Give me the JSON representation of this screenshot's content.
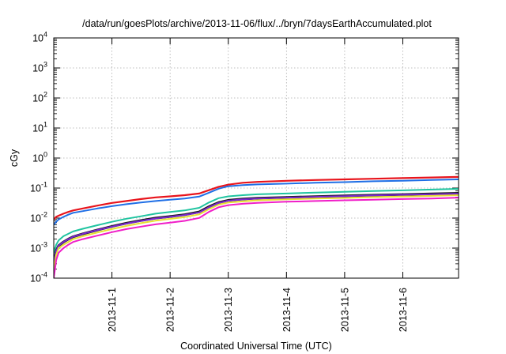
{
  "chart_data": {
    "type": "line",
    "title": "/data/run/goesPlots/archive/2013-11-06/flux/../bryn/7daysEarthAccumulated.plot",
    "xlabel": "Coordinated Universal Time (UTC)",
    "ylabel": "cGy",
    "xlim": [
      "2013-10-31T00:00",
      "2013-11-06T23:00"
    ],
    "ylim": [
      0.0001,
      10000
    ],
    "yscale": "log",
    "grid": true,
    "x_ticks": [
      "2013-11-1",
      "2013-11-2",
      "2013-11-3",
      "2013-11-4",
      "2013-11-5",
      "2013-11-6"
    ],
    "y_ticks": [
      {
        "base": "10",
        "exp": "-4",
        "value": 0.0001
      },
      {
        "base": "10",
        "exp": "-3",
        "value": 0.001
      },
      {
        "base": "10",
        "exp": "-2",
        "value": 0.01
      },
      {
        "base": "10",
        "exp": "-1",
        "value": 0.1
      },
      {
        "base": "10",
        "exp": "0",
        "value": 1
      },
      {
        "base": "10",
        "exp": "1",
        "value": 10
      },
      {
        "base": "10",
        "exp": "2",
        "value": 100
      },
      {
        "base": "10",
        "exp": "3",
        "value": 1000
      },
      {
        "base": "10",
        "exp": "4",
        "value": 10000
      }
    ],
    "x": [
      "2013-10-31T00:00",
      "2013-10-31T01:00",
      "2013-10-31T02:00",
      "2013-10-31T04:00",
      "2013-10-31T06:00",
      "2013-10-31T08:00",
      "2013-10-31T12:00",
      "2013-10-31T18:00",
      "2013-11-01T00:00",
      "2013-11-01T06:00",
      "2013-11-01T12:00",
      "2013-11-01T18:00",
      "2013-11-02T00:00",
      "2013-11-02T06:00",
      "2013-11-02T12:00",
      "2013-11-02T16:00",
      "2013-11-02T20:00",
      "2013-11-03T00:00",
      "2013-11-03T06:00",
      "2013-11-03T12:00",
      "2013-11-04T00:00",
      "2013-11-04T12:00",
      "2013-11-05T00:00",
      "2013-11-05T12:00",
      "2013-11-06T00:00",
      "2013-11-06T12:00",
      "2013-11-06T23:00"
    ],
    "series": [
      {
        "color": "#e8141c",
        "width": 2.2,
        "values": [
          0.009,
          0.011,
          0.012,
          0.014,
          0.016,
          0.018,
          0.021,
          0.026,
          0.032,
          0.037,
          0.043,
          0.049,
          0.053,
          0.058,
          0.066,
          0.085,
          0.11,
          0.13,
          0.15,
          0.16,
          0.175,
          0.185,
          0.195,
          0.205,
          0.215,
          0.225,
          0.235
        ]
      },
      {
        "color": "#1f6fe6",
        "width": 2.0,
        "values": [
          0.006,
          0.0075,
          0.009,
          0.011,
          0.013,
          0.015,
          0.017,
          0.021,
          0.025,
          0.029,
          0.033,
          0.037,
          0.041,
          0.045,
          0.052,
          0.07,
          0.095,
          0.115,
          0.125,
          0.132,
          0.14,
          0.15,
          0.158,
          0.168,
          0.175,
          0.185,
          0.195
        ]
      },
      {
        "color": "#20c4a0",
        "width": 2.0,
        "values": [
          0.0007,
          0.0013,
          0.0018,
          0.0025,
          0.003,
          0.0036,
          0.0044,
          0.0058,
          0.0075,
          0.0095,
          0.0115,
          0.014,
          0.016,
          0.018,
          0.022,
          0.033,
          0.046,
          0.053,
          0.058,
          0.062,
          0.066,
          0.071,
          0.075,
          0.08,
          0.084,
          0.089,
          0.094
        ]
      },
      {
        "color": "#1a1a1a",
        "width": 3.2,
        "values": [
          0.0003,
          0.0008,
          0.0012,
          0.0016,
          0.002,
          0.0024,
          0.003,
          0.004,
          0.0053,
          0.0068,
          0.0083,
          0.01,
          0.0113,
          0.013,
          0.016,
          0.024,
          0.033,
          0.039,
          0.043,
          0.046,
          0.049,
          0.052,
          0.055,
          0.058,
          0.061,
          0.064,
          0.067
        ]
      },
      {
        "color": "#7a28d0",
        "width": 2.0,
        "values": [
          0.0003,
          0.0008,
          0.0012,
          0.0016,
          0.002,
          0.0024,
          0.003,
          0.004,
          0.0052,
          0.0066,
          0.0081,
          0.0097,
          0.011,
          0.0127,
          0.0155,
          0.023,
          0.032,
          0.038,
          0.042,
          0.045,
          0.048,
          0.051,
          0.054,
          0.057,
          0.06,
          0.062,
          0.065
        ]
      },
      {
        "color": "#e8e030",
        "width": 2.0,
        "values": [
          0.0002,
          0.0006,
          0.001,
          0.0013,
          0.0016,
          0.002,
          0.0025,
          0.0033,
          0.0043,
          0.0055,
          0.0068,
          0.0082,
          0.0094,
          0.0108,
          0.0133,
          0.02,
          0.028,
          0.033,
          0.036,
          0.039,
          0.042,
          0.045,
          0.047,
          0.05,
          0.052,
          0.055,
          0.058
        ]
      },
      {
        "color": "#f01ec8",
        "width": 2.0,
        "values": [
          0.0001,
          0.0004,
          0.0007,
          0.001,
          0.0013,
          0.0016,
          0.002,
          0.0026,
          0.0034,
          0.0043,
          0.0052,
          0.0062,
          0.0071,
          0.0081,
          0.0101,
          0.016,
          0.023,
          0.027,
          0.03,
          0.032,
          0.035,
          0.037,
          0.039,
          0.041,
          0.043,
          0.045,
          0.048
        ]
      }
    ]
  }
}
